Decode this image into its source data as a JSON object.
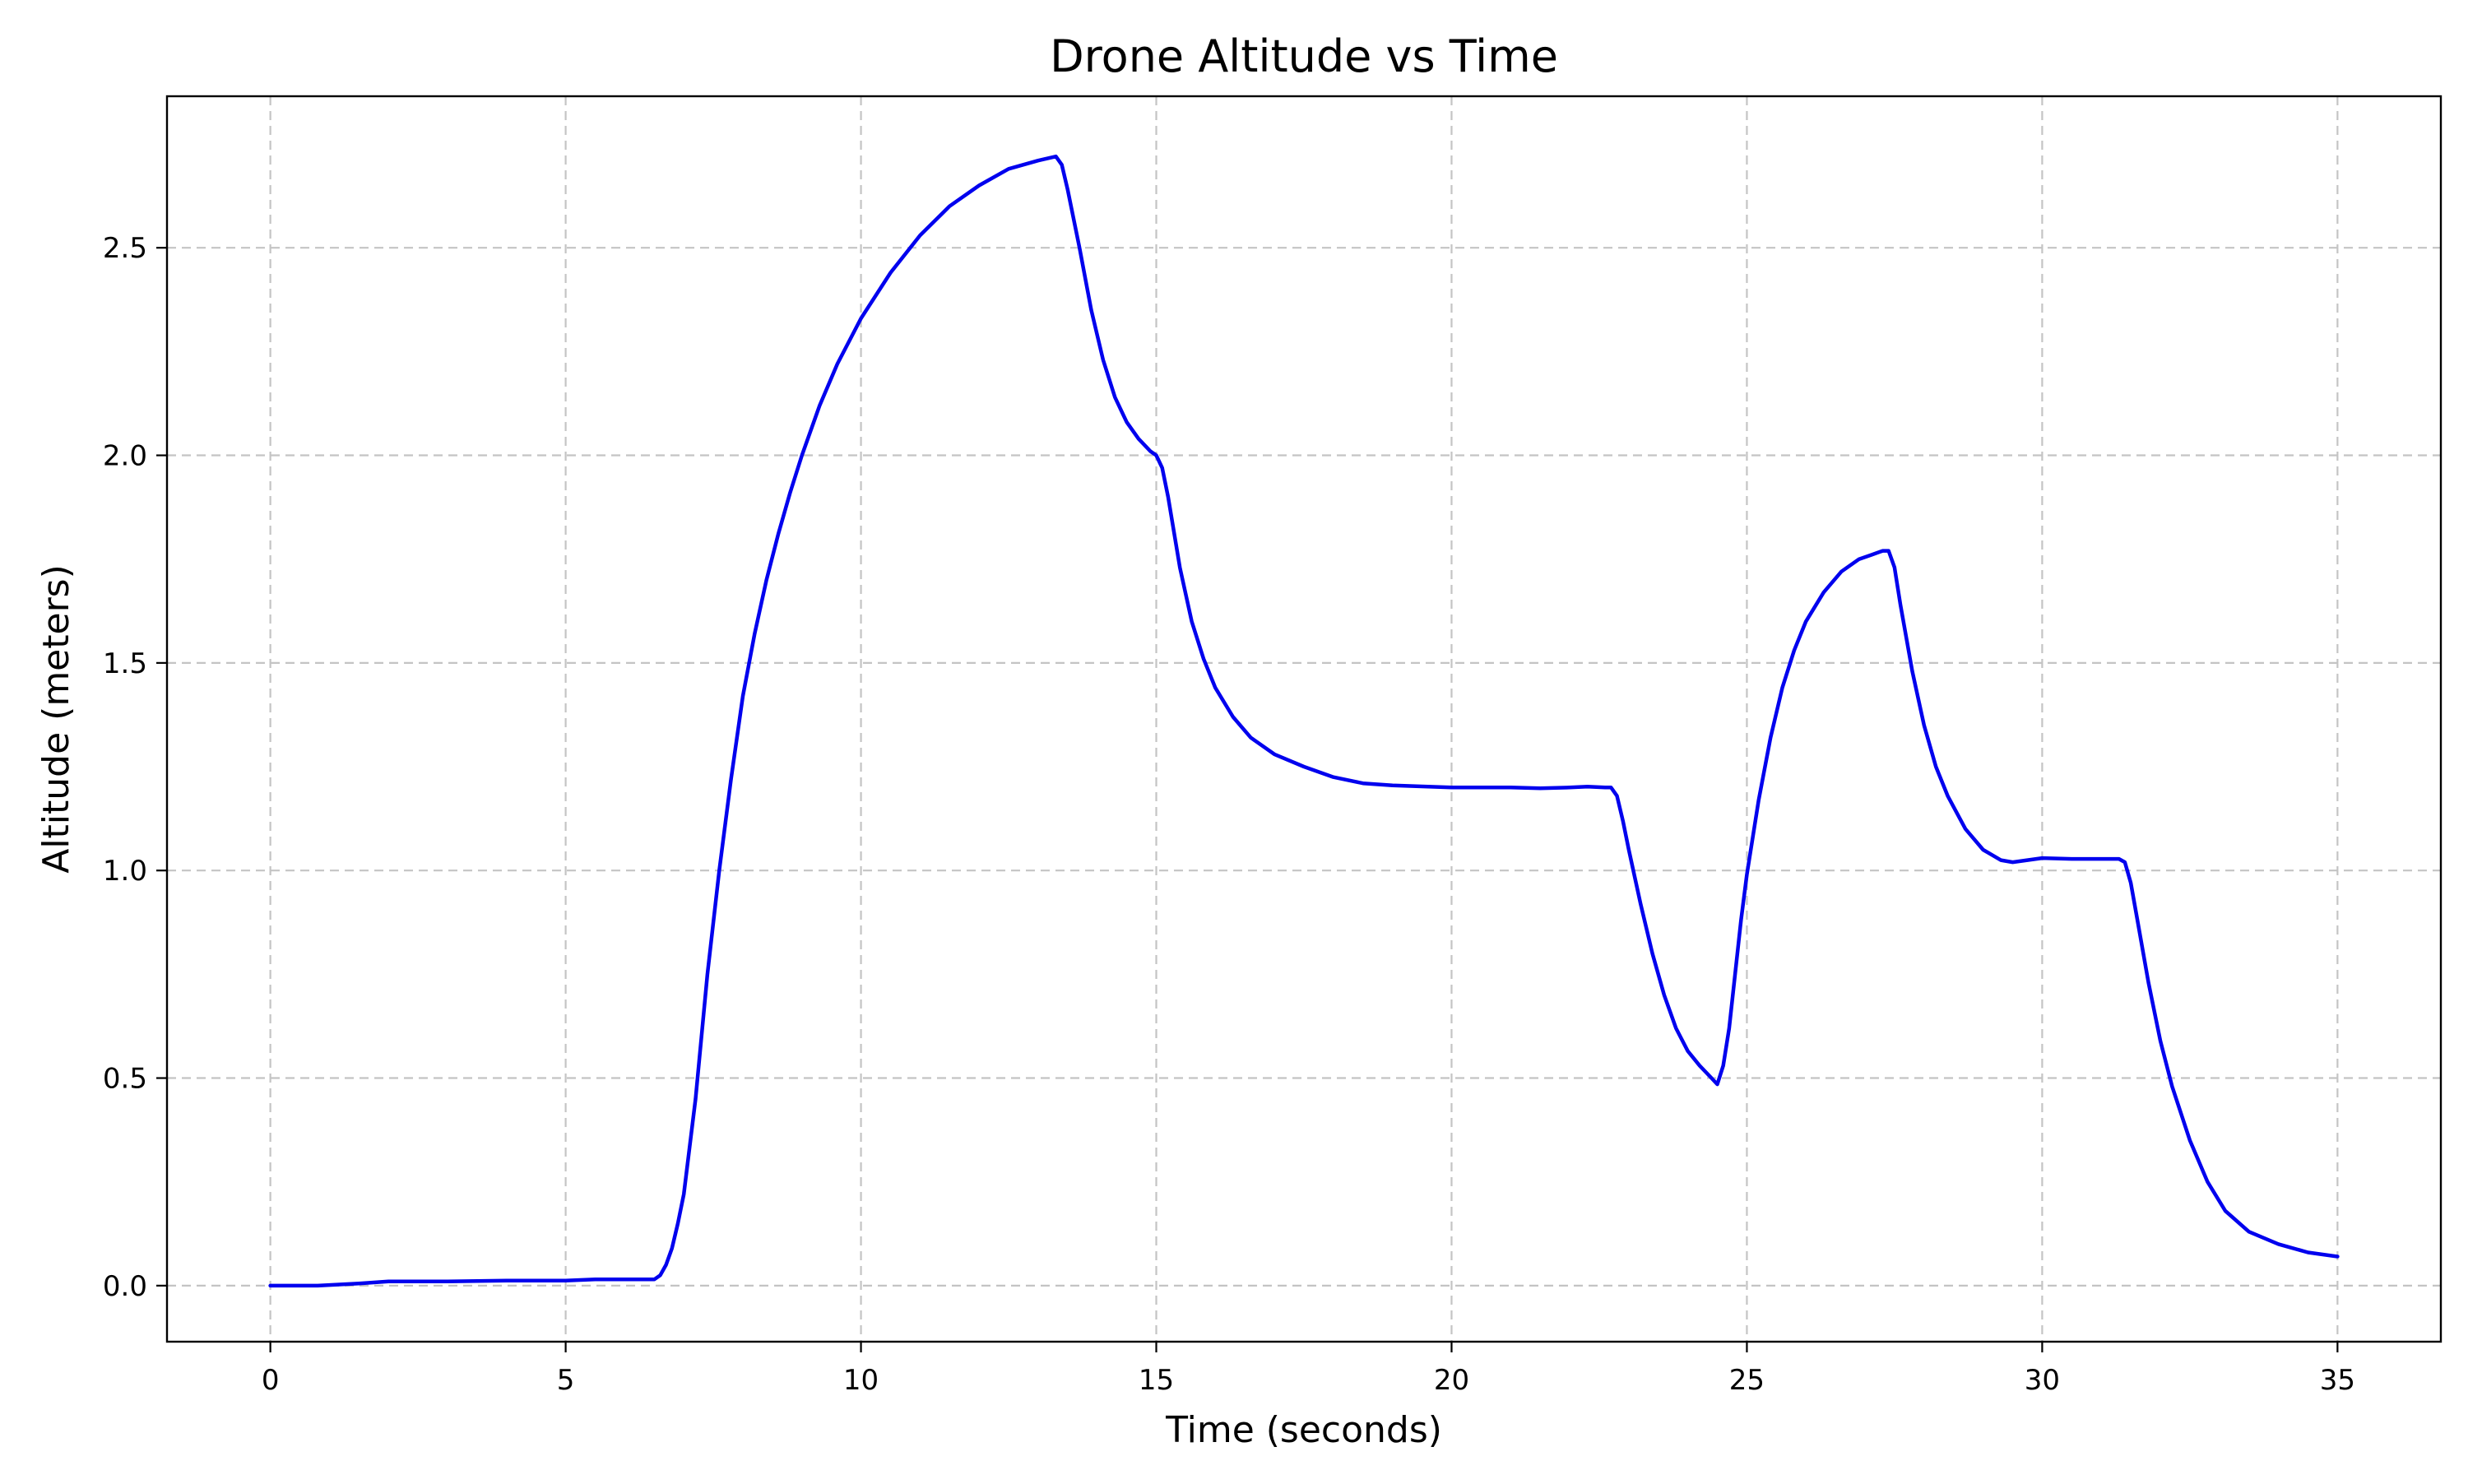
{
  "chart_data": {
    "type": "line",
    "title": "Drone Altitude vs Time",
    "xlabel": "Time (seconds)",
    "ylabel": "Altitude (meters)",
    "xlim": [
      -1.75,
      36.75
    ],
    "ylim": [
      -0.135,
      2.865
    ],
    "xticks": [
      0,
      5,
      10,
      15,
      20,
      25,
      30,
      35
    ],
    "yticks": [
      0.0,
      0.5,
      1.0,
      1.5,
      2.0,
      2.5
    ],
    "xtick_labels": [
      "0",
      "5",
      "10",
      "15",
      "20",
      "25",
      "30",
      "35"
    ],
    "ytick_labels": [
      "0.0",
      "0.5",
      "1.0",
      "1.5",
      "2.0",
      "2.5"
    ],
    "grid": true,
    "legend": "none",
    "series": [
      {
        "color": "#0000ee",
        "x": [
          0,
          0.8,
          1.5,
          2,
          3,
          4,
          5,
          5.5,
          6,
          6.5,
          6.6,
          6.7,
          6.8,
          6.9,
          7.0,
          7.2,
          7.4,
          7.6,
          7.8,
          8.0,
          8.2,
          8.4,
          8.6,
          8.8,
          9.0,
          9.3,
          9.6,
          10.0,
          10.5,
          11.0,
          11.5,
          12.0,
          12.5,
          13.0,
          13.3,
          13.4,
          13.5,
          13.7,
          13.9,
          14.1,
          14.3,
          14.5,
          14.7,
          14.9,
          15.0,
          15.1,
          15.2,
          15.4,
          15.6,
          15.8,
          16.0,
          16.3,
          16.6,
          17.0,
          17.5,
          18.0,
          18.5,
          19.0,
          20.0,
          21.0,
          21.5,
          22.0,
          22.3,
          22.6,
          22.7,
          22.8,
          22.9,
          23.0,
          23.2,
          23.4,
          23.6,
          23.8,
          24.0,
          24.2,
          24.4,
          24.5,
          24.6,
          24.7,
          24.8,
          24.9,
          25.0,
          25.2,
          25.4,
          25.6,
          25.8,
          26.0,
          26.3,
          26.6,
          26.9,
          27.1,
          27.3,
          27.4,
          27.5,
          27.6,
          27.8,
          28.0,
          28.2,
          28.4,
          28.7,
          29.0,
          29.3,
          29.5,
          30.0,
          30.5,
          31.0,
          31.3,
          31.4,
          31.5,
          31.6,
          31.8,
          32.0,
          32.2,
          32.5,
          32.8,
          33.1,
          33.5,
          34.0,
          34.5,
          35.0
        ],
        "y": [
          0.0,
          0.0,
          0.005,
          0.01,
          0.01,
          0.012,
          0.012,
          0.015,
          0.015,
          0.015,
          0.025,
          0.05,
          0.09,
          0.15,
          0.22,
          0.45,
          0.75,
          1.0,
          1.22,
          1.42,
          1.57,
          1.7,
          1.81,
          1.91,
          2.0,
          2.12,
          2.22,
          2.33,
          2.44,
          2.53,
          2.6,
          2.65,
          2.69,
          2.71,
          2.72,
          2.7,
          2.64,
          2.5,
          2.35,
          2.23,
          2.14,
          2.08,
          2.04,
          2.01,
          2.0,
          1.97,
          1.9,
          1.73,
          1.6,
          1.51,
          1.44,
          1.37,
          1.32,
          1.28,
          1.25,
          1.225,
          1.21,
          1.205,
          1.2,
          1.2,
          1.198,
          1.2,
          1.202,
          1.2,
          1.2,
          1.18,
          1.12,
          1.05,
          0.92,
          0.8,
          0.7,
          0.62,
          0.565,
          0.53,
          0.5,
          0.485,
          0.53,
          0.62,
          0.75,
          0.88,
          0.99,
          1.17,
          1.32,
          1.44,
          1.53,
          1.6,
          1.67,
          1.72,
          1.75,
          1.76,
          1.77,
          1.77,
          1.73,
          1.64,
          1.48,
          1.35,
          1.25,
          1.18,
          1.1,
          1.05,
          1.025,
          1.02,
          1.03,
          1.028,
          1.028,
          1.028,
          1.02,
          0.97,
          0.89,
          0.73,
          0.59,
          0.48,
          0.35,
          0.25,
          0.18,
          0.13,
          0.1,
          0.08,
          0.07
        ]
      }
    ]
  }
}
